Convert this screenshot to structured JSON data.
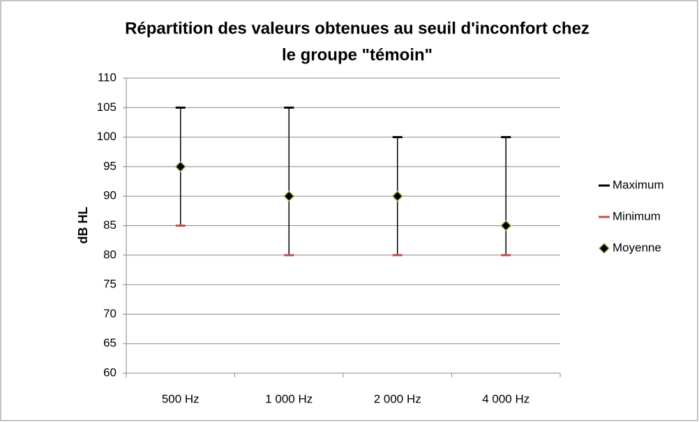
{
  "chart_data": {
    "type": "stock",
    "title": [
      "Répartition des valeurs obtenues au seuil d'inconfort chez",
      "le groupe \"témoin\""
    ],
    "y_label": "dB HL",
    "categories": [
      "500 Hz",
      "1 000 Hz",
      "2 000 Hz",
      "4 000 Hz"
    ],
    "series": [
      {
        "name": "Maximum",
        "color": "#000000",
        "values": [
          105,
          105,
          100,
          100
        ]
      },
      {
        "name": "Minimum",
        "color": "#c0504d",
        "values": [
          85,
          80,
          80,
          80
        ]
      },
      {
        "name": "Moyenne",
        "color": "#9bbb59",
        "values": [
          95,
          90,
          90,
          85
        ]
      }
    ],
    "ylim": [
      60,
      110
    ],
    "yticks": [
      60,
      65,
      70,
      75,
      80,
      85,
      90,
      95,
      100,
      105,
      110
    ],
    "grid": true,
    "legend": "right"
  }
}
